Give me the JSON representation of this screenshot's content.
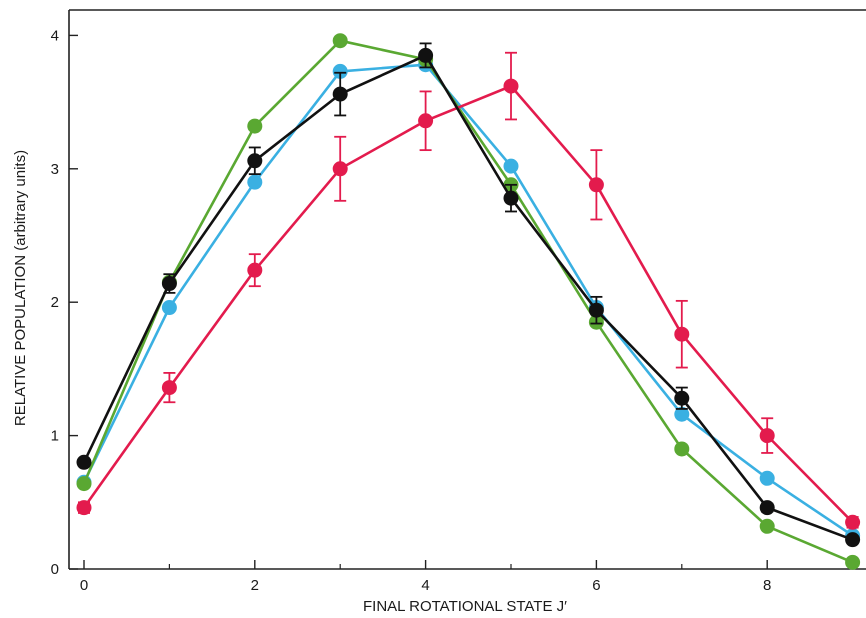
{
  "chart_data": {
    "type": "line",
    "title": "",
    "xlabel": "FINAL ROTATIONAL STATE J′",
    "ylabel": "RELATIVE POPULATION (arbitrary units)",
    "xlim": [
      -0.3,
      9.2
    ],
    "ylim": [
      0,
      4.2
    ],
    "xticks": [
      0,
      2,
      4,
      6,
      8
    ],
    "yticks": [
      0,
      1,
      2,
      3,
      4
    ],
    "xminor": [
      1,
      3,
      5,
      7,
      9
    ],
    "grid": false,
    "legend": "none",
    "series": [
      {
        "color": "#3ab0e2",
        "x": [
          0,
          1,
          2,
          3,
          4,
          5,
          6,
          7,
          8,
          9
        ],
        "y": [
          0.65,
          1.96,
          2.9,
          3.73,
          3.78,
          3.02,
          1.96,
          1.16,
          0.68,
          0.25
        ]
      },
      {
        "color": "#5aa832",
        "x": [
          0,
          1,
          2,
          3,
          4,
          5,
          6,
          7,
          8,
          9
        ],
        "y": [
          0.64,
          2.15,
          3.32,
          3.96,
          3.82,
          2.88,
          1.85,
          0.9,
          0.32,
          0.05
        ]
      },
      {
        "color": "#e31b4d",
        "x": [
          0,
          1,
          2,
          3,
          4,
          5,
          6,
          7,
          8,
          9
        ],
        "y": [
          0.46,
          1.36,
          2.24,
          3.0,
          3.36,
          3.62,
          2.88,
          1.76,
          1.0,
          0.35
        ],
        "err": [
          0.04,
          0.11,
          0.12,
          0.24,
          0.22,
          0.25,
          0.26,
          0.25,
          0.13,
          0.04
        ]
      },
      {
        "color": "#111111",
        "x": [
          0,
          1,
          2,
          3,
          4,
          5,
          6,
          7,
          8,
          9
        ],
        "y": [
          0.8,
          2.14,
          3.06,
          3.56,
          3.85,
          2.78,
          1.94,
          1.28,
          0.46,
          0.22
        ],
        "err": [
          0.02,
          0.07,
          0.1,
          0.16,
          0.09,
          0.1,
          0.1,
          0.08,
          0.03,
          0.02
        ]
      }
    ]
  }
}
